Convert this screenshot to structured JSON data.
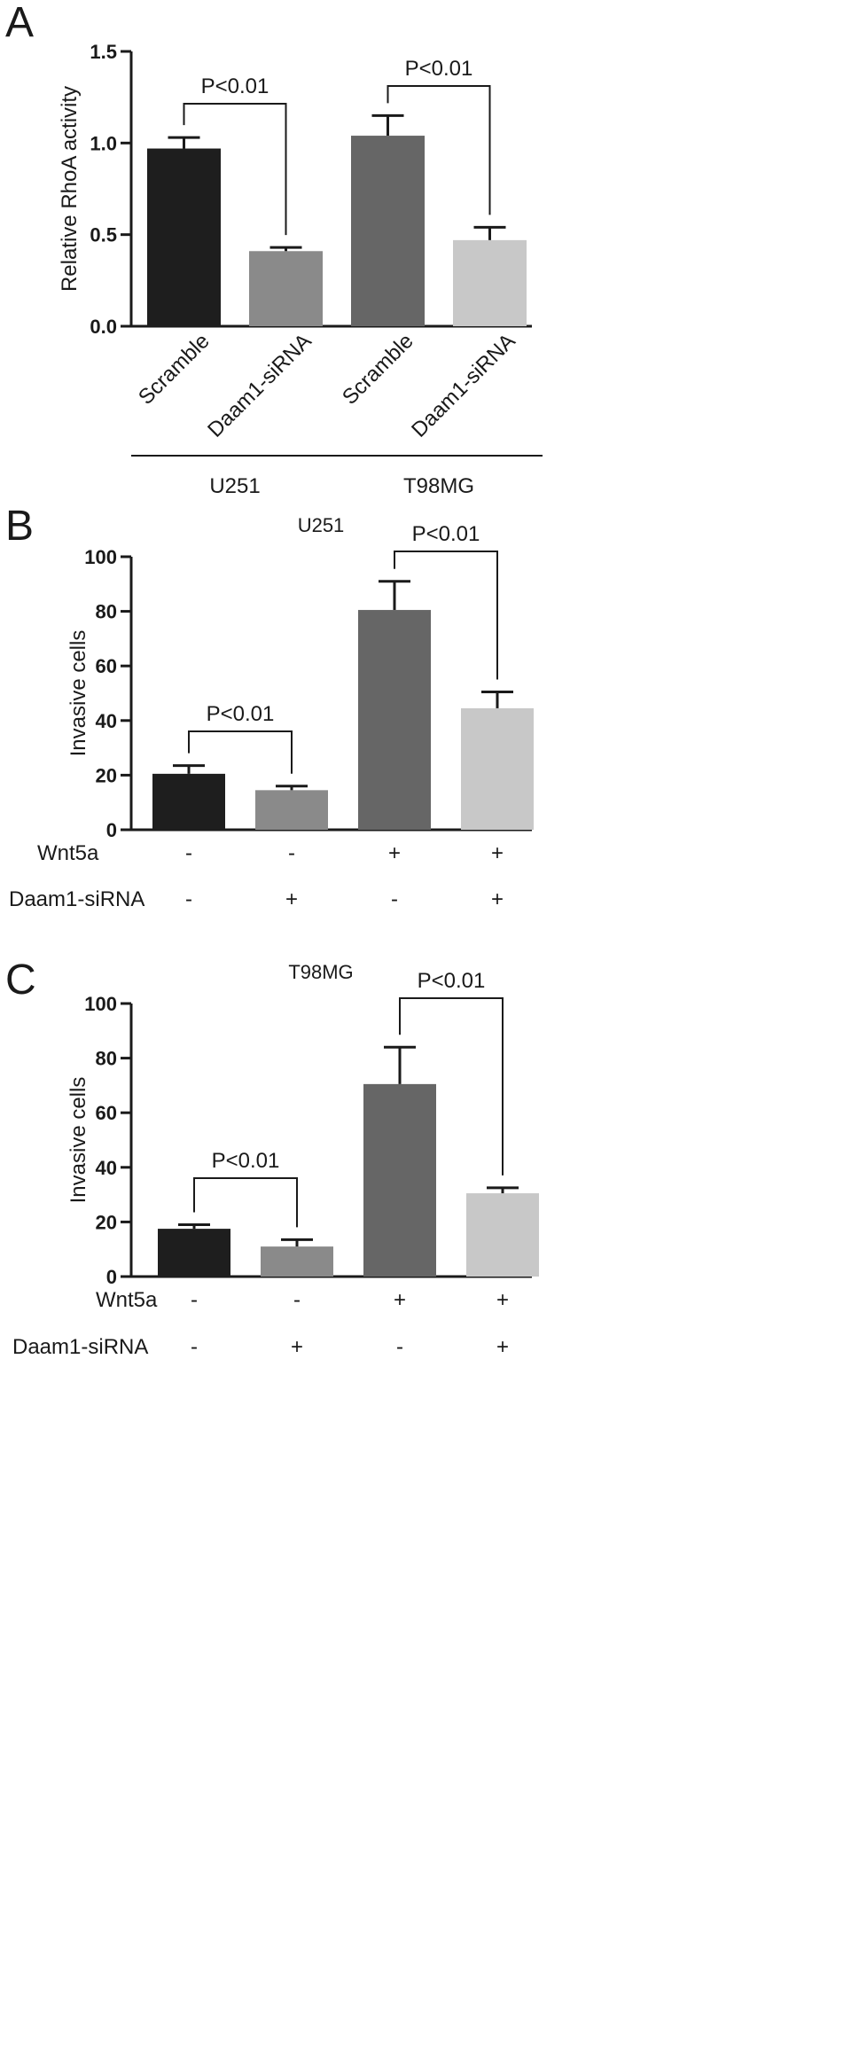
{
  "panels": {
    "a": "A",
    "b": "B",
    "c": "C"
  },
  "colors": {
    "ink": "#1a1a1a",
    "bar_scramble": "#1e1e1e",
    "bar_daam1": "#8a8a8a",
    "bar_scramble_dark": "#666666",
    "bar_daam1_light": "#c8c8c8"
  },
  "chart_data": [
    {
      "id": "A",
      "type": "bar",
      "title": "",
      "xlabel": "",
      "ylabel": "Relative RhoA activity",
      "ylim": [
        0,
        1.5
      ],
      "yticks": [
        "0.0",
        "0.5",
        "1.0",
        "1.5"
      ],
      "grid": false,
      "categories": [
        "Scramble",
        "Daam1-siRNA",
        "Scramble",
        "Daam1-siRNA"
      ],
      "groups": [
        {
          "label": "U251",
          "span": [
            0,
            1
          ]
        },
        {
          "label": "T98MG",
          "span": [
            2,
            3
          ]
        }
      ],
      "values": [
        0.97,
        0.41,
        1.04,
        0.47
      ],
      "errors": [
        0.06,
        0.02,
        0.11,
        0.07
      ],
      "bar_colors": [
        "#1e1e1e",
        "#8a8a8a",
        "#666666",
        "#c8c8c8"
      ],
      "annotations": [
        {
          "text": "P<0.01",
          "between": [
            0,
            1
          ]
        },
        {
          "text": "P<0.01",
          "between": [
            2,
            3
          ]
        }
      ]
    },
    {
      "id": "B",
      "type": "bar",
      "title": "U251",
      "xlabel": "",
      "ylabel": "Invasive cells",
      "ylim": [
        0,
        100
      ],
      "yticks": [
        "0",
        "20",
        "40",
        "60",
        "80",
        "100"
      ],
      "grid": false,
      "values": [
        20.5,
        14.5,
        80.5,
        44.5
      ],
      "errors": [
        3,
        1.5,
        10.5,
        6
      ],
      "bar_colors": [
        "#1e1e1e",
        "#8a8a8a",
        "#666666",
        "#c8c8c8"
      ],
      "conditions": [
        {
          "label": "Wnt5a",
          "marks": [
            "-",
            "-",
            "+",
            "+"
          ]
        },
        {
          "label": "Daam1-siRNA",
          "marks": [
            "-",
            "+",
            "-",
            "+"
          ]
        }
      ],
      "annotations": [
        {
          "text": "P<0.01",
          "between": [
            0,
            1
          ]
        },
        {
          "text": "P<0.01",
          "between": [
            2,
            3
          ]
        }
      ]
    },
    {
      "id": "C",
      "type": "bar",
      "title": "T98MG",
      "xlabel": "",
      "ylabel": "Invasive cells",
      "ylim": [
        0,
        100
      ],
      "yticks": [
        "0",
        "20",
        "40",
        "60",
        "80",
        "100"
      ],
      "grid": false,
      "values": [
        17.5,
        11,
        70.5,
        30.5
      ],
      "errors": [
        1.5,
        2.5,
        13.5,
        2
      ],
      "bar_colors": [
        "#1e1e1e",
        "#8a8a8a",
        "#666666",
        "#c8c8c8"
      ],
      "conditions": [
        {
          "label": "Wnt5a",
          "marks": [
            "-",
            "-",
            "+",
            "+"
          ]
        },
        {
          "label": "Daam1-siRNA",
          "marks": [
            "-",
            "+",
            "-",
            "+"
          ]
        }
      ],
      "annotations": [
        {
          "text": "P<0.01",
          "between": [
            0,
            1
          ]
        },
        {
          "text": "P<0.01",
          "between": [
            2,
            3
          ]
        }
      ]
    }
  ]
}
